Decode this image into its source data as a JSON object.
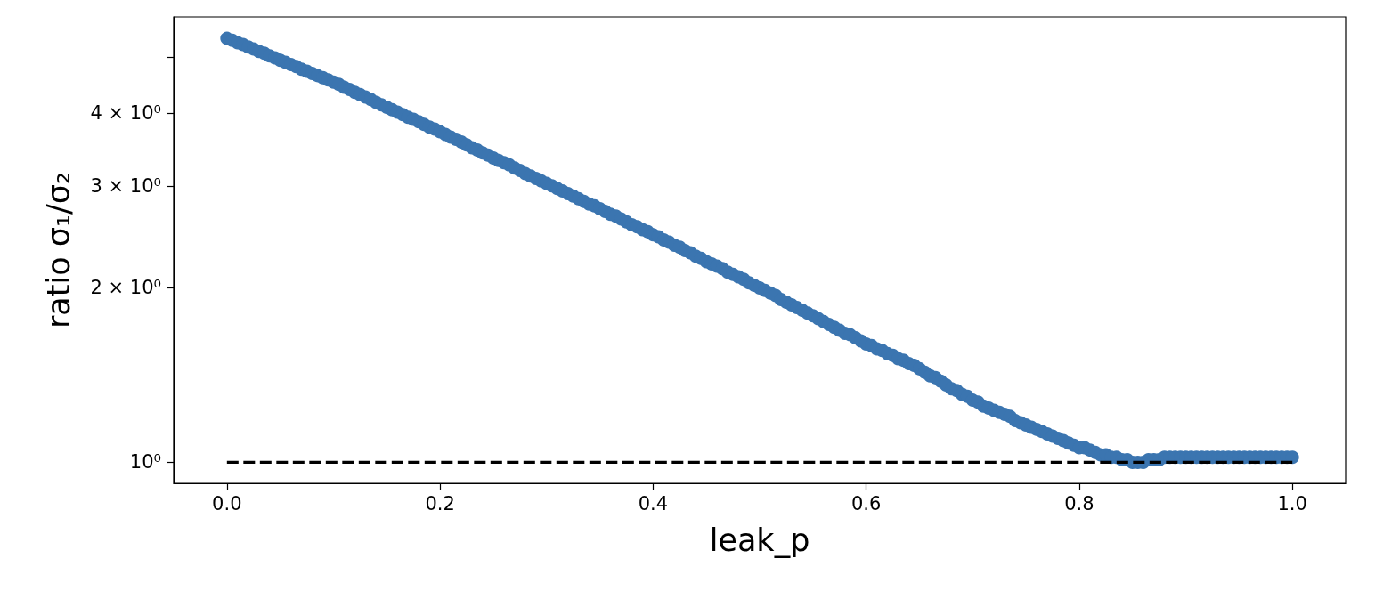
{
  "chart_data": {
    "type": "scatter",
    "xlabel": "leak_p",
    "ylabel": "ratio σ₁/σ₂",
    "log": "y",
    "xlim": [
      -0.05,
      1.05
    ],
    "xticks": [
      {
        "value": 0,
        "label": "0.0"
      },
      0.2,
      0.4,
      0.6,
      0.8,
      {
        "value": 1,
        "label": "1.0"
      }
    ],
    "ylim": [
      0.92,
      5.87
    ],
    "yticks": [
      {
        "value": 1,
        "label": "10⁰"
      },
      {
        "value": 2,
        "label": "2 × 10⁰"
      },
      {
        "value": 3,
        "label": "3 × 10⁰"
      },
      {
        "value": 4,
        "label": "4 × 10⁰"
      },
      {
        "value": 5,
        "label": null
      }
    ],
    "series": [
      {
        "color": "#3b75b0",
        "marker": "circle",
        "x": [
          0,
          0.005,
          0.01,
          0.015,
          0.02,
          0.025,
          0.03,
          0.035,
          0.04,
          0.045,
          0.05,
          0.055,
          0.06,
          0.065,
          0.07,
          0.075,
          0.08,
          0.085,
          0.09,
          0.095,
          0.1,
          0.105,
          0.11,
          0.115,
          0.12,
          0.125,
          0.13,
          0.135,
          0.14,
          0.145,
          0.15,
          0.155,
          0.16,
          0.165,
          0.17,
          0.175,
          0.18,
          0.185,
          0.19,
          0.195,
          0.2,
          0.205,
          0.21,
          0.215,
          0.22,
          0.225,
          0.23,
          0.235,
          0.24,
          0.245,
          0.25,
          0.255,
          0.26,
          0.265,
          0.27,
          0.275,
          0.28,
          0.285,
          0.29,
          0.295,
          0.3,
          0.305,
          0.31,
          0.315,
          0.32,
          0.325,
          0.33,
          0.335,
          0.34,
          0.345,
          0.35,
          0.355,
          0.36,
          0.365,
          0.37,
          0.375,
          0.38,
          0.385,
          0.39,
          0.395,
          0.4,
          0.405,
          0.41,
          0.415,
          0.42,
          0.425,
          0.43,
          0.435,
          0.44,
          0.445,
          0.45,
          0.455,
          0.46,
          0.465,
          0.47,
          0.475,
          0.48,
          0.485,
          0.49,
          0.495,
          0.5,
          0.505,
          0.51,
          0.515,
          0.52,
          0.525,
          0.53,
          0.535,
          0.54,
          0.545,
          0.55,
          0.555,
          0.56,
          0.565,
          0.57,
          0.575,
          0.58,
          0.585,
          0.59,
          0.595,
          0.6,
          0.605,
          0.61,
          0.615,
          0.62,
          0.625,
          0.63,
          0.635,
          0.64,
          0.645,
          0.65,
          0.655,
          0.66,
          0.665,
          0.67,
          0.675,
          0.68,
          0.685,
          0.69,
          0.695,
          0.7,
          0.705,
          0.71,
          0.715,
          0.72,
          0.725,
          0.73,
          0.735,
          0.74,
          0.745,
          0.75,
          0.755,
          0.76,
          0.765,
          0.77,
          0.775,
          0.78,
          0.785,
          0.79,
          0.795,
          0.8,
          0.805,
          0.81,
          0.815,
          0.82,
          0.825,
          0.83,
          0.835,
          0.84,
          0.845,
          0.85,
          0.855,
          0.86,
          0.865,
          0.87,
          0.875,
          0.88,
          0.885,
          0.89,
          0.895,
          0.9,
          0.905,
          0.91,
          0.915,
          0.92,
          0.925,
          0.93,
          0.935,
          0.94,
          0.945,
          0.95,
          0.955,
          0.96,
          0.965,
          0.97,
          0.975,
          0.98,
          0.985,
          0.99,
          0.995,
          1
        ],
        "values": [
          5.39,
          5.35,
          5.3,
          5.26,
          5.21,
          5.17,
          5.12,
          5.08,
          5.03,
          4.99,
          4.94,
          4.9,
          4.86,
          4.82,
          4.77,
          4.73,
          4.69,
          4.65,
          4.61,
          4.57,
          4.53,
          4.49,
          4.44,
          4.4,
          4.35,
          4.31,
          4.27,
          4.23,
          4.18,
          4.14,
          4.1,
          4.06,
          4.02,
          3.98,
          3.94,
          3.91,
          3.87,
          3.83,
          3.79,
          3.76,
          3.72,
          3.68,
          3.64,
          3.61,
          3.57,
          3.53,
          3.49,
          3.46,
          3.42,
          3.39,
          3.35,
          3.32,
          3.29,
          3.26,
          3.22,
          3.19,
          3.15,
          3.12,
          3.09,
          3.06,
          3.03,
          3.0,
          2.97,
          2.94,
          2.91,
          2.88,
          2.85,
          2.82,
          2.79,
          2.77,
          2.74,
          2.71,
          2.68,
          2.66,
          2.63,
          2.6,
          2.57,
          2.55,
          2.52,
          2.5,
          2.47,
          2.45,
          2.42,
          2.4,
          2.37,
          2.35,
          2.32,
          2.3,
          2.27,
          2.25,
          2.22,
          2.2,
          2.18,
          2.16,
          2.13,
          2.11,
          2.09,
          2.07,
          2.04,
          2.02,
          2.0,
          1.98,
          1.96,
          1.94,
          1.91,
          1.89,
          1.87,
          1.85,
          1.83,
          1.81,
          1.79,
          1.77,
          1.75,
          1.73,
          1.71,
          1.69,
          1.67,
          1.66,
          1.64,
          1.62,
          1.6,
          1.59,
          1.57,
          1.56,
          1.54,
          1.53,
          1.51,
          1.5,
          1.48,
          1.47,
          1.45,
          1.43,
          1.41,
          1.4,
          1.38,
          1.36,
          1.34,
          1.33,
          1.31,
          1.3,
          1.28,
          1.27,
          1.25,
          1.24,
          1.23,
          1.22,
          1.21,
          1.2,
          1.18,
          1.17,
          1.16,
          1.15,
          1.14,
          1.13,
          1.12,
          1.11,
          1.1,
          1.09,
          1.08,
          1.07,
          1.06,
          1.06,
          1.05,
          1.04,
          1.03,
          1.03,
          1.02,
          1.02,
          1.01,
          1.01,
          1.0,
          1.0,
          1.0,
          1.01,
          1.01,
          1.01,
          1.02,
          1.02,
          1.02,
          1.02,
          1.02,
          1.02,
          1.02,
          1.02,
          1.02,
          1.02,
          1.02,
          1.02,
          1.02,
          1.02,
          1.02,
          1.02,
          1.02,
          1.02,
          1.02,
          1.02,
          1.02,
          1.02,
          1.02,
          1.02,
          1.02
        ]
      },
      {
        "type": "line",
        "color": "#000000",
        "line_style": "dashed",
        "marker": "none",
        "x": [
          0,
          1
        ],
        "values": [
          1,
          1
        ]
      }
    ]
  }
}
